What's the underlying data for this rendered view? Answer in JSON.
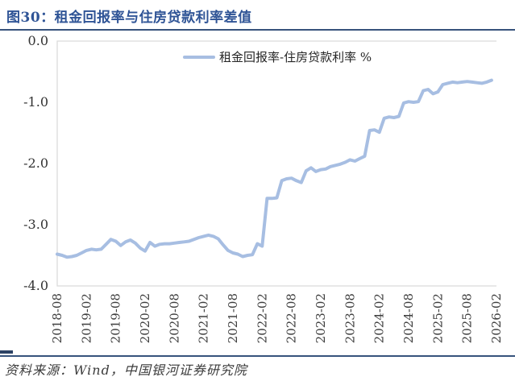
{
  "title": "图30：租金回报率与住房贷款利率差值",
  "source": "资料来源：Wind，中国银河证券研究院",
  "colors": {
    "title": "#2f5496",
    "rule": "#37537c",
    "line": "#a7bee2",
    "plot_border": "#d9d9d9",
    "axis_text": "#333333",
    "legend_text": "#262626"
  },
  "chart_data": {
    "type": "line",
    "title": "图30：租金回报率与住房贷款利率差值",
    "legend": [
      "租金回报率-住房贷款利率 %"
    ],
    "legend_position": "top-center-inside",
    "grid": false,
    "ylabel": "",
    "xlabel": "",
    "ylim": [
      -4.0,
      0.0
    ],
    "yticks": [
      "0.0",
      "-1.0",
      "-2.0",
      "-3.0",
      "-4.0"
    ],
    "xtick_labels": [
      "2018-08",
      "2019-02",
      "2019-08",
      "2020-02",
      "2020-08",
      "2021-02",
      "2021-08",
      "2022-02",
      "2022-08",
      "2023-02",
      "2023-08",
      "2024-02",
      "2024-08",
      "2025-02",
      "2025-08",
      "2026-02"
    ],
    "x": [
      "2018-08",
      "2018-09",
      "2018-10",
      "2018-11",
      "2018-12",
      "2019-01",
      "2019-02",
      "2019-03",
      "2019-04",
      "2019-05",
      "2019-06",
      "2019-07",
      "2019-08",
      "2019-09",
      "2019-10",
      "2019-11",
      "2019-12",
      "2020-01",
      "2020-02",
      "2020-03",
      "2020-04",
      "2020-05",
      "2020-06",
      "2020-07",
      "2020-08",
      "2020-09",
      "2020-10",
      "2020-11",
      "2020-12",
      "2021-01",
      "2021-02",
      "2021-03",
      "2021-04",
      "2021-05",
      "2021-06",
      "2021-07",
      "2021-08",
      "2021-09",
      "2021-10",
      "2021-11",
      "2021-12",
      "2022-01",
      "2022-02",
      "2022-03",
      "2022-04",
      "2022-05",
      "2022-06",
      "2022-07",
      "2022-08",
      "2022-09",
      "2022-10",
      "2022-11",
      "2022-12",
      "2023-01",
      "2023-02",
      "2023-03",
      "2023-04",
      "2023-05",
      "2023-06",
      "2023-07",
      "2023-08",
      "2023-09",
      "2023-10",
      "2023-11",
      "2023-12",
      "2024-01",
      "2024-02",
      "2024-03",
      "2024-04",
      "2024-05",
      "2024-06",
      "2024-07",
      "2024-08",
      "2024-09",
      "2024-10",
      "2024-11",
      "2024-12",
      "2025-01",
      "2025-02",
      "2025-03",
      "2025-04",
      "2025-05",
      "2025-06",
      "2025-07",
      "2025-08",
      "2025-09",
      "2025-10",
      "2025-11",
      "2025-12",
      "2026-01"
    ],
    "series": [
      {
        "name": "租金回报率-住房贷款利率 %",
        "values": [
          -3.48,
          -3.5,
          -3.53,
          -3.52,
          -3.5,
          -3.46,
          -3.42,
          -3.4,
          -3.41,
          -3.4,
          -3.32,
          -3.24,
          -3.27,
          -3.34,
          -3.28,
          -3.25,
          -3.3,
          -3.38,
          -3.43,
          -3.29,
          -3.35,
          -3.32,
          -3.31,
          -3.31,
          -3.3,
          -3.29,
          -3.28,
          -3.27,
          -3.24,
          -3.21,
          -3.19,
          -3.17,
          -3.19,
          -3.23,
          -3.33,
          -3.42,
          -3.46,
          -3.48,
          -3.52,
          -3.5,
          -3.49,
          -3.31,
          -3.35,
          -2.57,
          -2.57,
          -2.56,
          -2.28,
          -2.25,
          -2.24,
          -2.28,
          -2.31,
          -2.12,
          -2.07,
          -2.13,
          -2.1,
          -2.09,
          -2.05,
          -2.03,
          -2.01,
          -1.98,
          -1.94,
          -1.96,
          -1.92,
          -1.88,
          -1.46,
          -1.45,
          -1.49,
          -1.26,
          -1.24,
          -1.25,
          -1.23,
          -1.01,
          -0.99,
          -1.0,
          -0.99,
          -0.81,
          -0.79,
          -0.86,
          -0.83,
          -0.71,
          -0.69,
          -0.67,
          -0.68,
          -0.67,
          -0.66,
          -0.67,
          -0.68,
          -0.69,
          -0.67,
          -0.64
        ]
      }
    ]
  }
}
